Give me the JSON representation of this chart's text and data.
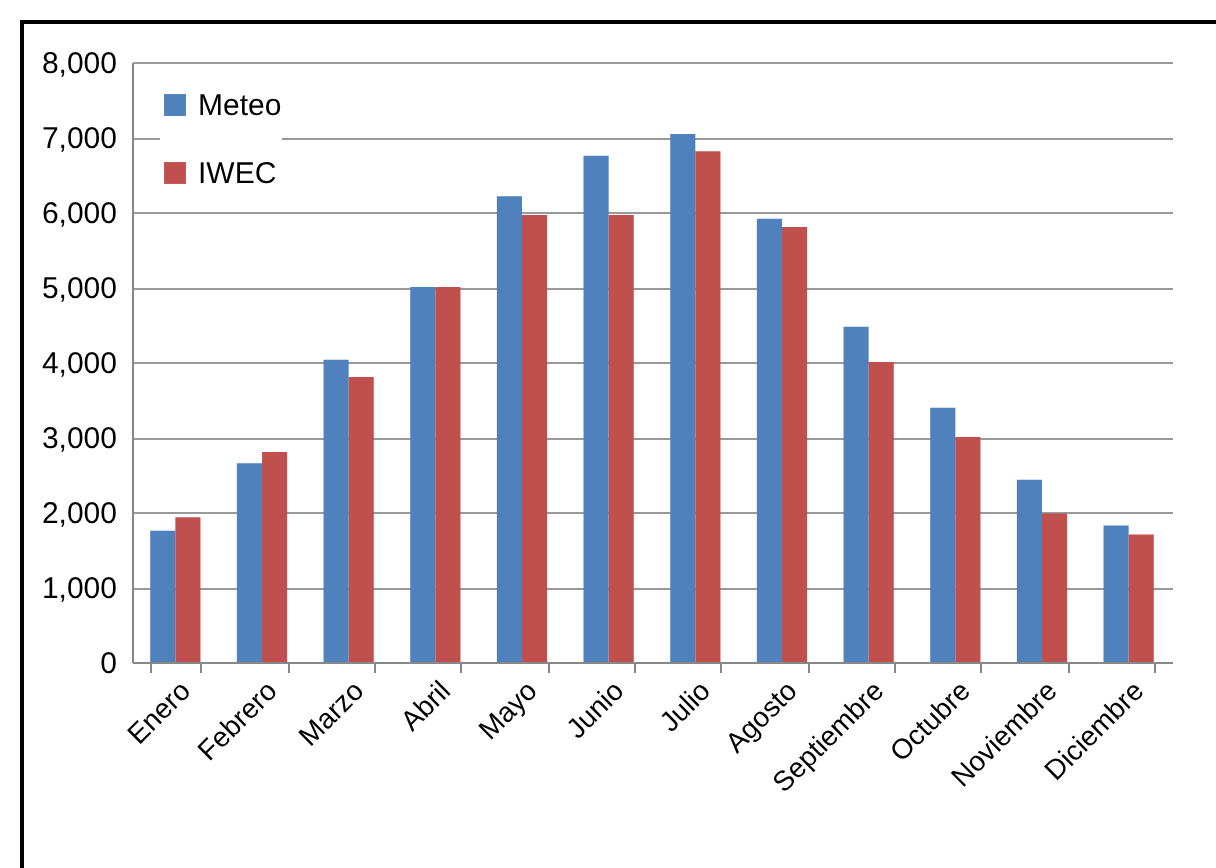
{
  "chart_data": {
    "type": "bar",
    "categories": [
      "Enero",
      "Febrero",
      "Marzo",
      "Abril",
      "Mayo",
      "Junio",
      "Julio",
      "Agosto",
      "Septiembre",
      "Octubre",
      "Noviembre",
      "Diciembre"
    ],
    "series": [
      {
        "name": "Meteo",
        "color": "#4f81bd",
        "values": [
          1750,
          2650,
          4030,
          5000,
          6210,
          6750,
          7040,
          5910,
          4470,
          3390,
          2430,
          1820
        ]
      },
      {
        "name": "IWEC",
        "color": "#c0504d",
        "values": [
          1930,
          2800,
          3800,
          5000,
          5960,
          5960,
          6810,
          5800,
          4000,
          3000,
          1980,
          1700
        ]
      }
    ],
    "ylim": [
      0,
      8000
    ],
    "yticks": [
      0,
      {
        "value": 1000,
        "label": "1,000"
      },
      {
        "value": 2000,
        "label": "2,000"
      },
      {
        "value": 3000,
        "label": "3,000"
      },
      {
        "value": 4000,
        "label": "4,000"
      },
      {
        "value": 5000,
        "label": "5,000"
      },
      {
        "value": 6000,
        "label": "6,000"
      },
      {
        "value": 7000,
        "label": "7,000"
      },
      {
        "value": 8000,
        "label": "8,000"
      }
    ],
    "grid": "y",
    "legend": "top left"
  }
}
